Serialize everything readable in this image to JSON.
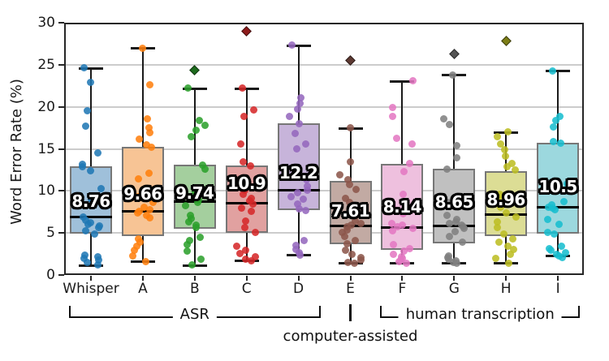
{
  "chart_data": {
    "type": "boxplot",
    "title": "",
    "xlabel": "",
    "ylabel": "Word Error Rate (%)",
    "ylim": [
      0,
      30
    ],
    "yticks": [
      0,
      5,
      10,
      15,
      20,
      25,
      30
    ],
    "grid_values": [
      5,
      10,
      15,
      20,
      25
    ],
    "grid": "horizontal",
    "categories": [
      "Whisper",
      "A",
      "B",
      "C",
      "D",
      "E",
      "F",
      "G",
      "H",
      "I"
    ],
    "groups": [
      {
        "label": "ASR",
        "from": 0,
        "to": 4,
        "style": "bracket"
      },
      {
        "label": "computer-assisted",
        "from": 5,
        "to": 5,
        "style": "bar-below"
      },
      {
        "label": "human transcription",
        "from": 6,
        "to": 9,
        "style": "bracket"
      }
    ],
    "series": [
      {
        "label": "Whisper",
        "color": "#1f77b4",
        "fill": "#9fc0da",
        "outlier_color": "#14517c",
        "mean_label": "8.76",
        "mean": 8.76,
        "whisker_low": 1.2,
        "q1": 4.9,
        "median": 6.9,
        "q3": 12.9,
        "whisker_high": 24.6,
        "outliers": [],
        "points": [
          24.6,
          22.9,
          19.5,
          17.7,
          14.5,
          13.2,
          12.9,
          12.4,
          10.3,
          9.0,
          6.9,
          6.5,
          6.2,
          6.0,
          5.8,
          5.6,
          5.3,
          4.9,
          2.4,
          2.2,
          2.0,
          1.8,
          1.5,
          1.2
        ]
      },
      {
        "label": "A",
        "color": "#ff7f0e",
        "fill": "#f7c495",
        "outlier_color": "#b35607",
        "mean_label": "9.66",
        "mean": 9.66,
        "whisker_low": 1.6,
        "q1": 4.6,
        "median": 7.6,
        "q3": 15.2,
        "whisker_high": 27.0,
        "outliers": [],
        "points": [
          27.0,
          22.6,
          18.6,
          17.5,
          16.9,
          16.2,
          15.5,
          15.2,
          12.1,
          11.4,
          9.3,
          8.6,
          8.1,
          7.8,
          7.6,
          7.4,
          7.1,
          6.8,
          4.3,
          3.9,
          3.4,
          2.9,
          2.3,
          1.6
        ]
      },
      {
        "label": "B",
        "color": "#2ca02c",
        "fill": "#a4cf9e",
        "outlier_color": "#1d6b1d",
        "mean_label": "9.74",
        "mean": 9.74,
        "whisker_low": 1.2,
        "q1": 5.5,
        "median": 8.8,
        "q3": 13.1,
        "whisker_high": 22.2,
        "outliers": [
          24.4
        ],
        "points": [
          22.2,
          18.4,
          17.8,
          17.2,
          16.4,
          13.1,
          12.6,
          9.9,
          9.4,
          8.9,
          8.6,
          8.2,
          7.1,
          6.7,
          6.3,
          5.9,
          5.6,
          4.5,
          4.1,
          3.6,
          2.8,
          1.9,
          1.2
        ]
      },
      {
        "label": "C",
        "color": "#d62728",
        "fill": "#e1a1a0",
        "outlier_color": "#8e1b1b",
        "mean_label": "10.9",
        "mean": 10.9,
        "whisker_low": 1.7,
        "q1": 5.0,
        "median": 8.6,
        "q3": 13.0,
        "whisker_high": 22.2,
        "outliers": [
          29.0
        ],
        "points": [
          22.2,
          19.6,
          18.9,
          15.6,
          13.5,
          13.0,
          10.6,
          10.1,
          9.6,
          9.1,
          8.8,
          8.4,
          8.0,
          7.6,
          6.4,
          5.6,
          5.1,
          3.4,
          2.9,
          2.6,
          2.2,
          1.9,
          1.7
        ]
      },
      {
        "label": "D",
        "color": "#9467bd",
        "fill": "#c7b4da",
        "outlier_color": "#64447e",
        "mean_label": "12.2",
        "mean": 12.2,
        "whisker_low": 2.4,
        "q1": 7.7,
        "median": 10.1,
        "q3": 18.0,
        "whisker_high": 27.3,
        "outliers": [],
        "points": [
          27.3,
          21.1,
          20.4,
          19.7,
          18.9,
          18.0,
          16.8,
          15.6,
          15.0,
          11.3,
          10.6,
          10.1,
          9.8,
          9.3,
          9.0,
          8.4,
          7.9,
          7.7,
          4.1,
          3.5,
          3.0,
          2.7,
          2.4
        ]
      },
      {
        "label": "E",
        "color": "#8c564b",
        "fill": "#c2aaa3",
        "outlier_color": "#5d3932",
        "mean_label": "7.61",
        "mean": 7.61,
        "whisker_low": 1.4,
        "q1": 3.7,
        "median": 5.9,
        "q3": 11.2,
        "whisker_high": 17.5,
        "outliers": [
          25.5
        ],
        "points": [
          17.5,
          13.5,
          11.9,
          11.3,
          10.8,
          10.2,
          9.1,
          8.6,
          7.1,
          6.4,
          6.1,
          5.9,
          5.7,
          5.4,
          5.1,
          4.6,
          4.1,
          3.7,
          2.9,
          2.5,
          2.1,
          1.8,
          1.5,
          1.4
        ]
      },
      {
        "label": "F",
        "color": "#e377c2",
        "fill": "#eec0de",
        "outlier_color": "#974f81",
        "mean_label": "8.14",
        "mean": 8.14,
        "whisker_low": 1.4,
        "q1": 3.0,
        "median": 5.7,
        "q3": 13.2,
        "whisker_high": 23.1,
        "outliers": [],
        "points": [
          23.1,
          19.9,
          18.9,
          16.3,
          15.6,
          13.3,
          12.3,
          9.6,
          8.1,
          7.3,
          6.1,
          5.9,
          5.7,
          5.5,
          5.3,
          3.6,
          3.1,
          2.8,
          2.5,
          2.2,
          2.0,
          1.8,
          1.6,
          1.4
        ]
      },
      {
        "label": "G",
        "color": "#7f7f7f",
        "fill": "#c0c0c0",
        "outlier_color": "#545454",
        "mean_label": "8.65",
        "mean": 8.65,
        "whisker_low": 1.4,
        "q1": 3.8,
        "median": 5.9,
        "q3": 12.6,
        "whisker_high": 23.8,
        "outliers": [
          26.3
        ],
        "points": [
          23.8,
          18.6,
          17.9,
          15.4,
          13.9,
          12.6,
          9.1,
          8.6,
          7.1,
          6.6,
          6.3,
          6.1,
          5.9,
          5.7,
          5.5,
          5.2,
          4.6,
          3.9,
          2.3,
          2.1,
          1.9,
          1.7,
          1.5,
          1.4
        ]
      },
      {
        "label": "H",
        "color": "#bcbd22",
        "fill": "#dcdd95",
        "outlier_color": "#7d7e16",
        "mean_label": "8.96",
        "mean": 8.96,
        "whisker_low": 1.4,
        "q1": 4.6,
        "median": 7.2,
        "q3": 12.3,
        "whisker_high": 17.0,
        "outliers": [
          27.8
        ],
        "points": [
          17.0,
          16.4,
          15.6,
          14.9,
          14.1,
          13.3,
          12.9,
          12.5,
          9.6,
          9.1,
          8.1,
          7.4,
          6.9,
          6.3,
          5.6,
          4.9,
          4.3,
          3.9,
          3.4,
          3.0,
          2.5,
          2.0,
          1.4
        ]
      },
      {
        "label": "I",
        "color": "#17becf",
        "fill": "#9cd8de",
        "outlier_color": "#0f7e89",
        "mean_label": "10.5",
        "mean": 10.5,
        "whisker_low": 2.3,
        "q1": 4.9,
        "median": 8.1,
        "q3": 15.7,
        "whisker_high": 24.3,
        "outliers": [],
        "points": [
          24.3,
          18.9,
          18.4,
          17.6,
          15.9,
          15.7,
          10.9,
          8.7,
          8.3,
          8.1,
          8.0,
          7.8,
          6.6,
          6.0,
          5.1,
          4.9,
          3.4,
          3.1,
          2.9,
          2.7,
          2.5,
          2.3,
          2.1
        ]
      }
    ]
  }
}
